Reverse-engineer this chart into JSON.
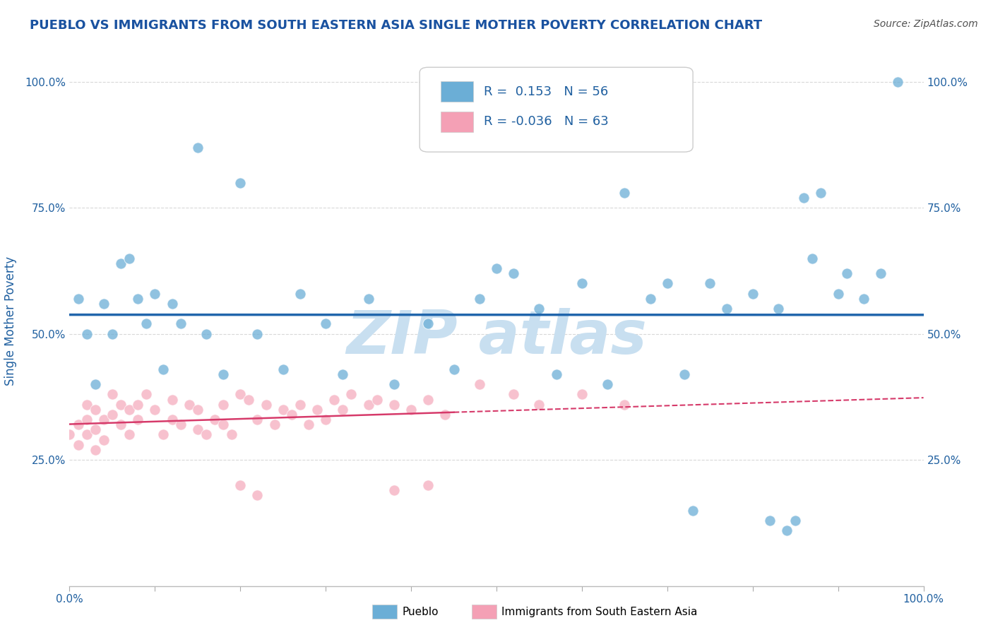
{
  "title": "PUEBLO VS IMMIGRANTS FROM SOUTH EASTERN ASIA SINGLE MOTHER POVERTY CORRELATION CHART",
  "source": "Source: ZipAtlas.com",
  "ylabel": "Single Mother Poverty",
  "x_min": 0.0,
  "x_max": 1.0,
  "y_min": 0.0,
  "y_max": 1.05,
  "y_ticks": [
    0.25,
    0.5,
    0.75,
    1.0
  ],
  "y_tick_labels": [
    "25.0%",
    "50.0%",
    "75.0%",
    "100.0%"
  ],
  "x_tick_labels_show": [
    "0.0%",
    "100.0%"
  ],
  "blue_color": "#6baed6",
  "pink_color": "#f4a0b5",
  "blue_line_color": "#2166ac",
  "pink_line_color": "#d63a6a",
  "R_blue": 0.153,
  "N_blue": 56,
  "R_pink": -0.036,
  "N_pink": 63,
  "watermark_color": "#c8dff0",
  "background_color": "#ffffff",
  "grid_color": "#d8d8d8",
  "title_color": "#1a52a0",
  "axis_label_color": "#2060a0",
  "tick_color": "#2060a0",
  "source_color": "#505050",
  "legend_text_color": "#333333",
  "legend_num_color": "#2060a0"
}
